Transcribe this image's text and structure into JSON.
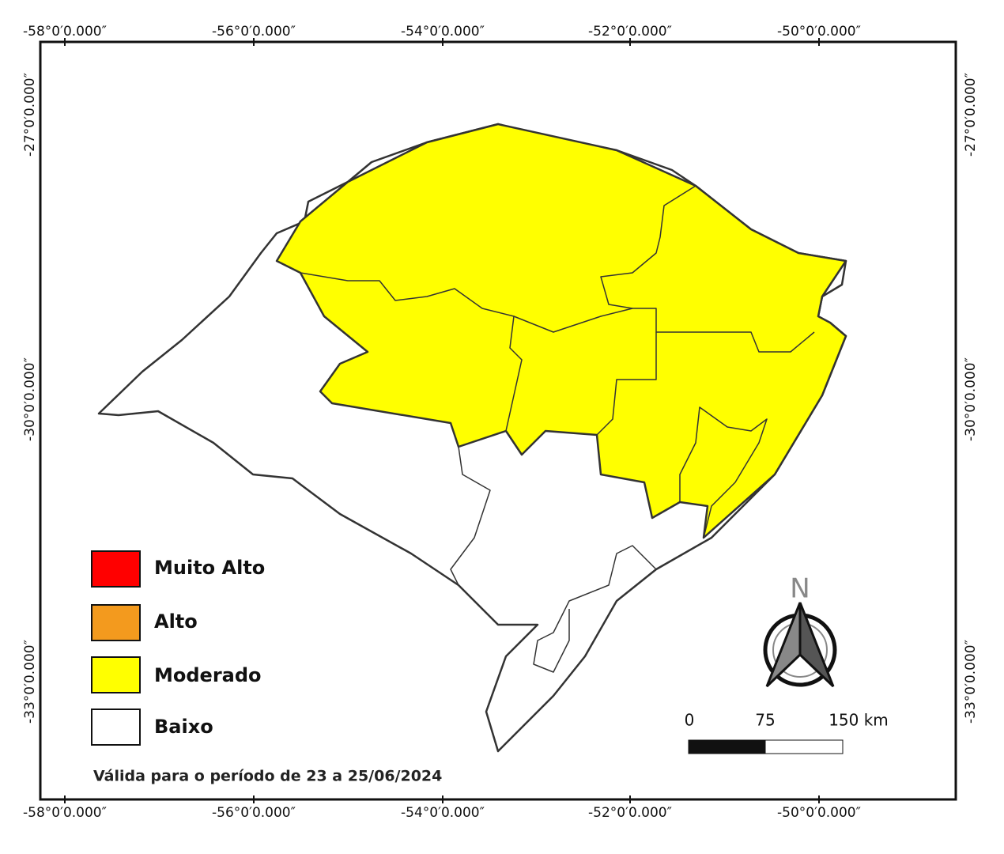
{
  "grid_labels": {
    "top": [
      "-58°0′0.000″",
      "-56°0′0.000″",
      "-54°0′0.000″",
      "-52°0′0.000″",
      "-50°0′0.000″"
    ],
    "bottom": [
      "-58°0′0.000″",
      "-56°0′0.000″",
      "-54°0′0.000″",
      "-52°0′0.000″",
      "-50°0′0.000″"
    ],
    "left": [
      "-27°0′0.000″",
      "-30°0′0.000″",
      "-33°0′0.000″"
    ],
    "right": [
      "-27°0′0.000″",
      "-30°0′0.000″",
      "-33°0′0.000″"
    ]
  },
  "legend": [
    {
      "label": "Muito Alto",
      "color": "#ff0000"
    },
    {
      "label": "Alto",
      "color": "#f39a1e"
    },
    {
      "label": "Moderado",
      "color": "#ffff00"
    },
    {
      "label": "Baixo",
      "color": "#ffffff"
    }
  ],
  "validity": "Válida para o período de 23 a 25/06/2024",
  "north_label": "N",
  "scale_bar": {
    "labels": [
      "0",
      "75",
      "150 km"
    ]
  }
}
